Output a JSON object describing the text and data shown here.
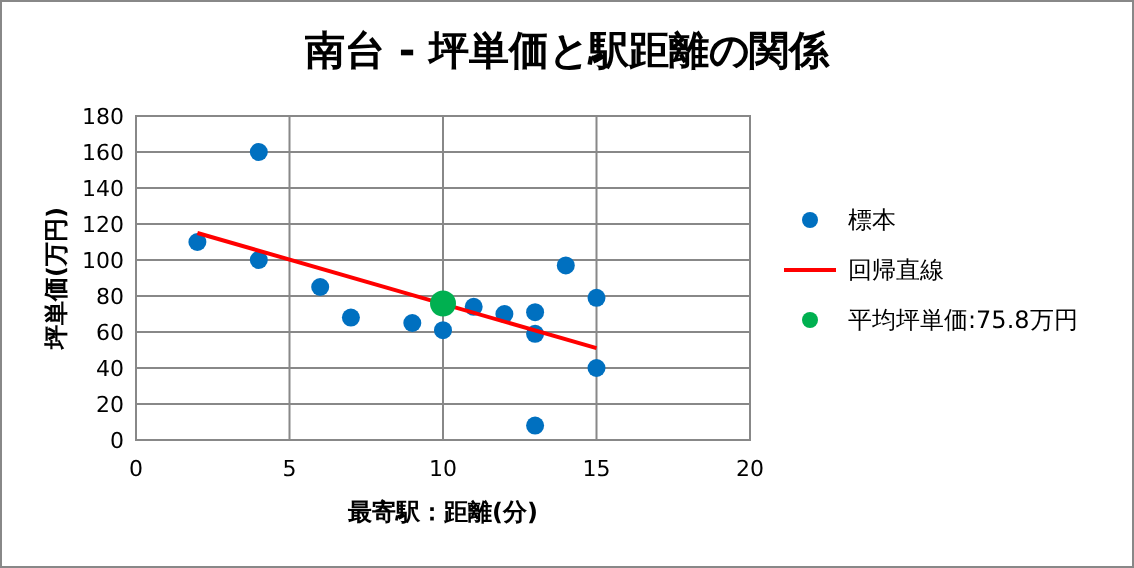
{
  "chart_data": {
    "type": "scatter",
    "title": "南台 - 坪単価と駅距離の関係",
    "xlabel": "最寄駅：距離(分)",
    "ylabel": "坪単価(万円)",
    "xlim": [
      0,
      20
    ],
    "xticks": [
      0,
      5,
      10,
      15,
      20
    ],
    "ylim": [
      0,
      180
    ],
    "yticks": [
      0,
      20,
      40,
      60,
      80,
      100,
      120,
      140,
      160,
      180
    ],
    "grid": true,
    "legend": "right",
    "series": [
      {
        "name": "標本",
        "type": "scatter",
        "color": "#0070c0",
        "marker": "circle",
        "x": [
          2,
          4,
          4,
          6,
          7,
          9,
          10,
          11,
          12,
          13,
          13,
          14,
          15,
          15,
          13
        ],
        "values": [
          110,
          160,
          100,
          85,
          68,
          65,
          61,
          74,
          70,
          71,
          59,
          97,
          79,
          40,
          8
        ]
      },
      {
        "name": "回帰直線",
        "type": "line",
        "color": "#ff0000",
        "x": [
          2,
          15
        ],
        "values": [
          115,
          51
        ]
      },
      {
        "name": "平均坪単価:75.8万円",
        "type": "scatter",
        "color": "#00b050",
        "marker": "circle",
        "x": [
          10
        ],
        "values": [
          75.8
        ]
      }
    ]
  }
}
